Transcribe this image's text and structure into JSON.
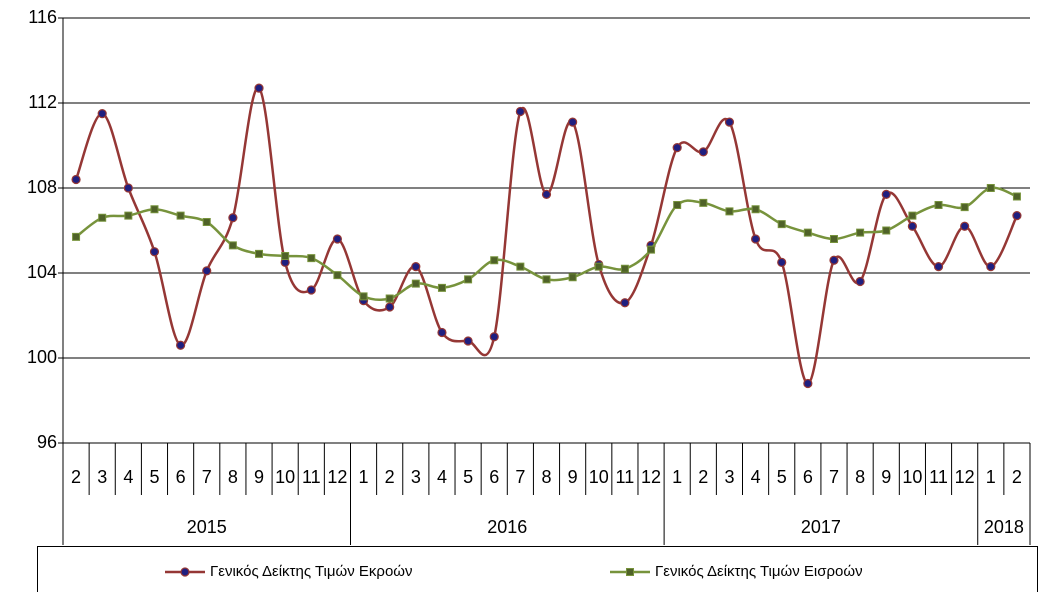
{
  "chart_data": {
    "type": "line",
    "categories": [
      "2",
      "3",
      "4",
      "5",
      "6",
      "7",
      "8",
      "9",
      "10",
      "11",
      "12",
      "1",
      "2",
      "3",
      "4",
      "5",
      "6",
      "7",
      "8",
      "9",
      "10",
      "11",
      "12",
      "1",
      "2",
      "3",
      "4",
      "5",
      "6",
      "7",
      "8",
      "9",
      "10",
      "11",
      "12",
      "1",
      "2"
    ],
    "years": [
      "2015",
      "2016",
      "2017",
      "2018"
    ],
    "series": [
      {
        "name": "Γενικός Δείκτης Τιμών Εκροών",
        "color": "#953735",
        "marker_color": "#1f1f80",
        "marker": "circle",
        "values": [
          108.4,
          111.5,
          108.0,
          105.0,
          100.6,
          104.1,
          106.6,
          112.7,
          104.5,
          103.2,
          105.6,
          102.7,
          102.4,
          104.3,
          101.2,
          100.8,
          101.0,
          111.6,
          107.7,
          111.1,
          104.4,
          102.6,
          105.3,
          109.9,
          109.7,
          111.1,
          105.6,
          104.5,
          98.8,
          104.6,
          103.6,
          107.7,
          106.2,
          104.3,
          106.2,
          104.3,
          106.7
        ]
      },
      {
        "name": "Γενικός Δείκτης Τιμών Εισροών",
        "color": "#77933c",
        "marker_color": "#4f6228",
        "marker": "square",
        "values": [
          105.7,
          106.6,
          106.7,
          107.0,
          106.7,
          106.4,
          105.3,
          104.9,
          104.8,
          104.7,
          103.9,
          102.9,
          102.8,
          103.5,
          103.3,
          103.7,
          104.6,
          104.3,
          103.7,
          103.8,
          104.3,
          104.2,
          105.1,
          107.2,
          107.3,
          106.9,
          107.0,
          106.3,
          105.9,
          105.6,
          105.9,
          106.0,
          106.7,
          107.2,
          107.1,
          108.0,
          107.6
        ]
      }
    ],
    "ylim": [
      96,
      116
    ],
    "yticks": [
      96,
      100,
      104,
      108,
      112,
      116
    ],
    "grid": true,
    "legend": "bottom"
  }
}
